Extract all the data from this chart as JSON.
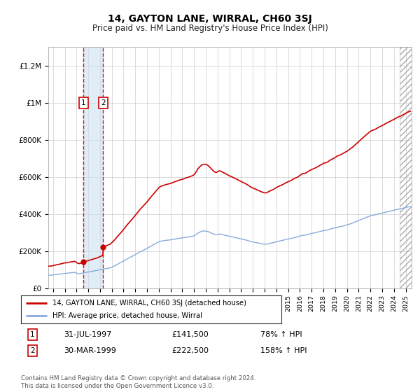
{
  "title": "14, GAYTON LANE, WIRRAL, CH60 3SJ",
  "subtitle": "Price paid vs. HM Land Registry's House Price Index (HPI)",
  "footer": "Contains HM Land Registry data © Crown copyright and database right 2024.\nThis data is licensed under the Open Government Licence v3.0.",
  "legend_line1": "14, GAYTON LANE, WIRRAL, CH60 3SJ (detached house)",
  "legend_line2": "HPI: Average price, detached house, Wirral",
  "sale1_date": "31-JUL-1997",
  "sale1_price": 141500,
  "sale1_hpi_text": "78% ↑ HPI",
  "sale1_year_float": 1997.583,
  "sale2_date": "30-MAR-1999",
  "sale2_price": 222500,
  "sale2_hpi_text": "158% ↑ HPI",
  "sale2_year_float": 1999.25,
  "line_color_sales": "#cc0000",
  "line_color_hpi": "#88aadd",
  "dot_color": "#cc0000",
  "dashed_color": "#cc0000",
  "shaded_between_color": "#cce0f0",
  "background_color": "#ffffff",
  "grid_color": "#cccccc",
  "ylim": [
    0,
    1300000
  ],
  "xlim_start": 1994.6,
  "xlim_end": 2025.5,
  "hatch_start": 2024.5,
  "yticks": [
    0,
    200000,
    400000,
    600000,
    800000,
    1000000,
    1200000
  ],
  "ytick_labels": [
    "£0",
    "£200K",
    "£400K",
    "£600K",
    "£800K",
    "£1M",
    "£1.2M"
  ],
  "title_fontsize": 10,
  "subtitle_fontsize": 8.5
}
